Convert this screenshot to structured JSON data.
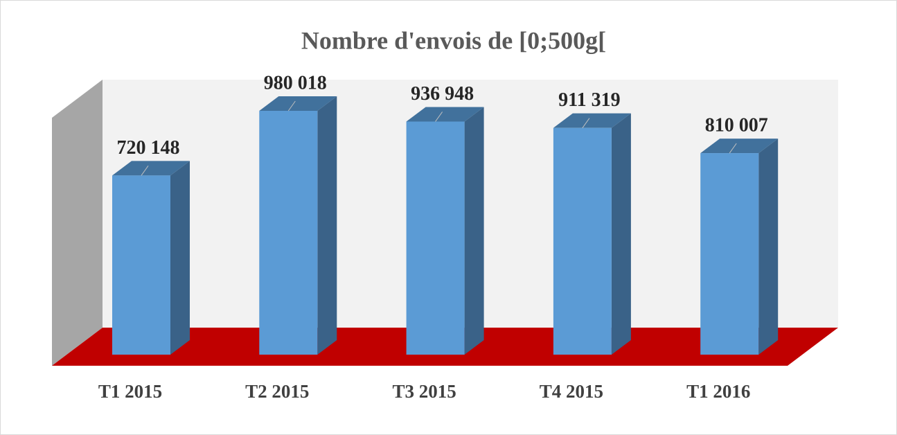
{
  "chart_data": {
    "type": "bar",
    "title": "Nombre d'envois de [0;500g[",
    "categories": [
      "T1 2015",
      "T2 2015",
      "T3 2015",
      "T4 2015",
      "T1 2016"
    ],
    "values": [
      720148,
      980018,
      936948,
      911319,
      810007
    ],
    "value_labels": [
      "720 148",
      "980 018",
      "936 948",
      "911 319",
      "810 007"
    ],
    "color": "#5b9bd5"
  }
}
